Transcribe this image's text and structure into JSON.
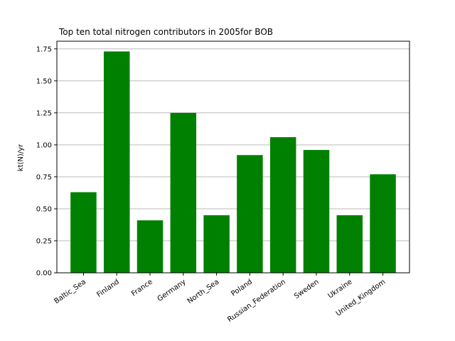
{
  "chart_data": {
    "type": "bar",
    "title": "Top ten total nitrogen contributors in 2005for  BOB",
    "xlabel": "",
    "ylabel": "kt(N)/yr",
    "categories": [
      "Baltic_Sea",
      "Finland",
      "France",
      "Germany",
      "North_Sea",
      "Poland",
      "Russian_Federation",
      "Sweden",
      "Ukraine",
      "United_Kingdom"
    ],
    "values": [
      0.63,
      1.73,
      0.41,
      1.25,
      0.45,
      0.92,
      1.06,
      0.96,
      0.45,
      0.77
    ],
    "yticks": [
      0.0,
      0.25,
      0.5,
      0.75,
      1.0,
      1.25,
      1.5,
      1.75
    ],
    "ytick_labels": [
      "0.00",
      "0.25",
      "0.50",
      "0.75",
      "1.00",
      "1.25",
      "1.50",
      "1.75"
    ],
    "ylim": [
      0,
      1.75
    ],
    "grid": "y",
    "bar_color": "#008000",
    "grid_color": "#b0b0b0"
  }
}
